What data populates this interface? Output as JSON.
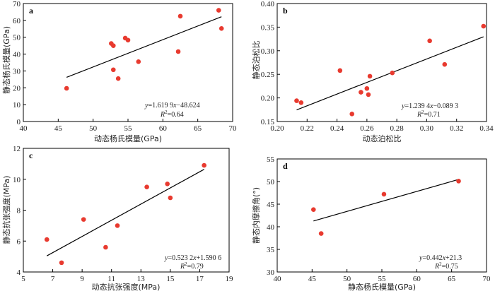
{
  "chart_data": [
    {
      "panel": "a",
      "type": "scatter",
      "xlabel": "动态杨氏模量(GPa)",
      "ylabel": "静态杨氏模量(GPa)",
      "xlim": [
        40,
        70
      ],
      "ylim": [
        0,
        70
      ],
      "xticks": [
        "40",
        "45",
        "50",
        "55",
        "60",
        "65",
        "70"
      ],
      "yticks": [
        "0",
        "10",
        "20",
        "30",
        "40",
        "50",
        "60",
        "70"
      ],
      "x": [
        46.2,
        52.6,
        52.9,
        52.9,
        53.6,
        54.6,
        55.0,
        56.5,
        62.2,
        62.5,
        68.0,
        68.4
      ],
      "y": [
        19.7,
        46.3,
        45.0,
        30.7,
        25.5,
        49.5,
        48.3,
        35.5,
        41.5,
        62.5,
        66.0,
        55.2
      ],
      "fit": {
        "slope": 1.6199,
        "intercept": -48.624,
        "x_range": [
          46.2,
          68.4
        ]
      },
      "equation": {
        "y": "y",
        "eq": "=1.619 9",
        "x": "x",
        "rest": "−48.624"
      },
      "r2": {
        "R": "R",
        "sup": "2",
        "rest": "=0.64"
      },
      "marker_color": "#e83a2f",
      "line_color": "#000000"
    },
    {
      "panel": "b",
      "type": "scatter",
      "xlabel": "动态泊松比",
      "ylabel": "静态泊松比",
      "xlim": [
        0.2,
        0.34
      ],
      "ylim": [
        0.15,
        0.4
      ],
      "xticks": [
        "0.20",
        "0.22",
        "0.24",
        "0.26",
        "0.28",
        "0.30",
        "0.32",
        "0.34"
      ],
      "yticks": [
        "0.15",
        "0.20",
        "0.25",
        "0.30",
        "0.35",
        "0.40"
      ],
      "x": [
        0.213,
        0.216,
        0.242,
        0.25,
        0.256,
        0.26,
        0.261,
        0.262,
        0.277,
        0.302,
        0.312,
        0.338
      ],
      "y": [
        0.194,
        0.19,
        0.258,
        0.166,
        0.212,
        0.22,
        0.207,
        0.246,
        0.253,
        0.321,
        0.271,
        0.352
      ],
      "fit": {
        "slope": 1.2394,
        "intercept": -0.0893,
        "x_range": [
          0.213,
          0.338
        ]
      },
      "equation": {
        "y": "y",
        "eq": "=1.239 4",
        "x": "x",
        "rest": "−0.089 3"
      },
      "r2": {
        "R": "R",
        "sup": "2",
        "rest": "=0.71"
      },
      "marker_color": "#e83a2f",
      "line_color": "#000000"
    },
    {
      "panel": "c",
      "type": "scatter",
      "xlabel": "动态抗张强度(MPa)",
      "ylabel": "静态抗张强度(MPa)",
      "xlim": [
        5,
        19
      ],
      "ylim": [
        4,
        12
      ],
      "xticks": [
        "5",
        "7",
        "9",
        "11",
        "13",
        "15",
        "17",
        "19"
      ],
      "yticks": [
        "4",
        "6",
        "8",
        "10",
        "12"
      ],
      "x": [
        6.6,
        7.6,
        9.1,
        10.6,
        11.4,
        13.4,
        14.8,
        15.0,
        17.3
      ],
      "y": [
        6.1,
        4.6,
        7.4,
        5.6,
        7.0,
        9.5,
        9.7,
        8.8,
        10.9
      ],
      "fit": {
        "slope": 0.5232,
        "intercept": 1.5906,
        "x_range": [
          6.6,
          17.3
        ]
      },
      "equation": {
        "y": "y",
        "eq": "=0.523 2",
        "x": "x",
        "rest": "+1.590 6"
      },
      "r2": {
        "R": "R",
        "sup": "2",
        "rest": "=0.79"
      },
      "marker_color": "#e83a2f",
      "line_color": "#000000"
    },
    {
      "panel": "d",
      "type": "scatter",
      "xlabel": "静态杨氏模量(GPa)",
      "ylabel": "静态内摩擦角(°)",
      "xlim": [
        40,
        70
      ],
      "ylim": [
        30,
        55
      ],
      "xticks": [
        "40",
        "45",
        "50",
        "55",
        "60",
        "65",
        "70"
      ],
      "yticks": [
        "30",
        "35",
        "40",
        "45",
        "50",
        "55"
      ],
      "x": [
        45.2,
        46.3,
        55.3,
        66.0
      ],
      "y": [
        43.8,
        38.5,
        47.2,
        50.1
      ],
      "fit": {
        "slope": 0.442,
        "intercept": 21.3,
        "x_range": [
          45.2,
          66.0
        ]
      },
      "equation": {
        "y": "y",
        "eq": "=0.442",
        "x": "x",
        "rest": "+21.3"
      },
      "r2": {
        "R": "R",
        "sup": "2",
        "rest": "=0.75"
      },
      "marker_color": "#e83a2f",
      "line_color": "#000000"
    }
  ]
}
